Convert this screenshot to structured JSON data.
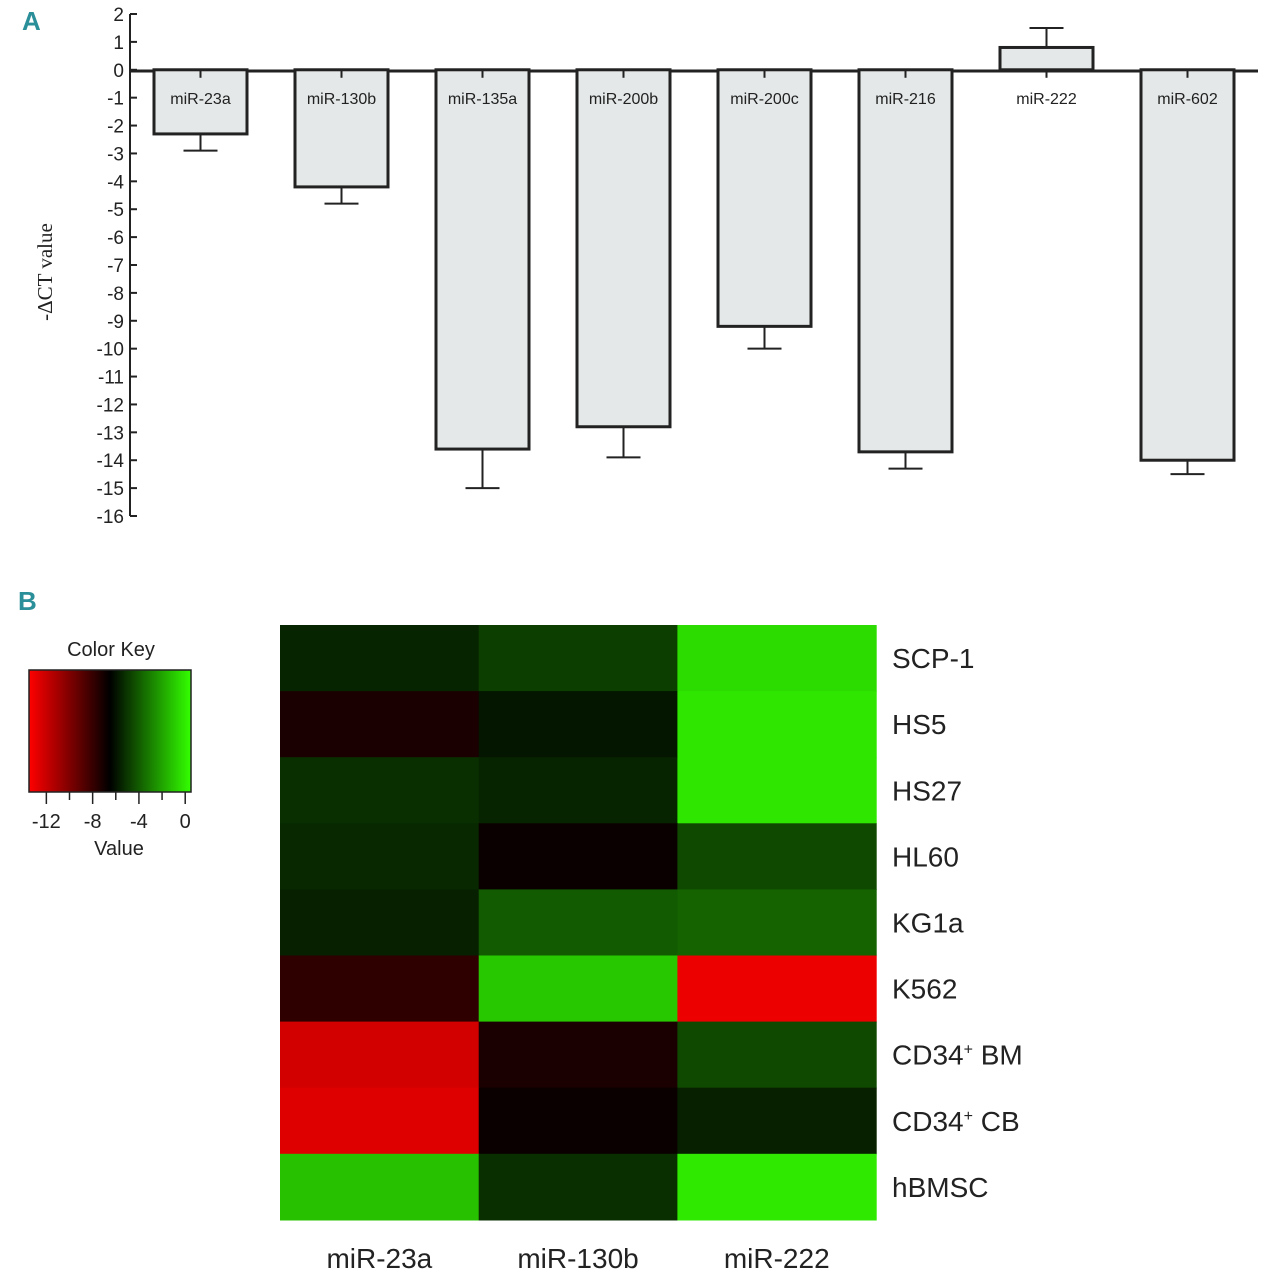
{
  "panel_a_letter": "A",
  "panel_b_letter": "B",
  "chart_data": [
    {
      "type": "bar",
      "ylabel": "-ΔCT value",
      "ylim": [
        -16,
        2
      ],
      "yticks": [
        "2",
        "1",
        "0",
        "-1",
        "-2",
        "-3",
        "-4",
        "-5",
        "-6",
        "-7",
        "-8",
        "-9",
        "-10",
        "-11",
        "-12",
        "-13",
        "-14",
        "-15",
        "-16"
      ],
      "categories": [
        "miR-23a",
        "miR-130b",
        "miR-135a",
        "miR-200b",
        "miR-200c",
        "miR-216",
        "miR-222",
        "miR-602"
      ],
      "values": [
        -2.3,
        -4.2,
        -13.6,
        -12.8,
        -9.2,
        -13.7,
        0.8,
        -14.0
      ],
      "error": [
        0.6,
        0.6,
        1.4,
        1.1,
        0.8,
        0.6,
        0.7,
        0.5
      ],
      "bar_color": "#e4e8e8",
      "grid": false
    },
    {
      "type": "heatmap",
      "columns": [
        "miR-23a",
        "miR-130b",
        "miR-222"
      ],
      "rows": [
        "SCP-1",
        "HS5",
        "HS27",
        "HL60",
        "KG1a",
        "K562",
        "CD34+ BM",
        "CD34+ CB",
        "hBMSC"
      ],
      "values": [
        [
          -5.5,
          -4.8,
          -0.5
        ],
        [
          -7.2,
          -5.9,
          -0.2
        ],
        [
          -5.2,
          -5.5,
          -0.2
        ],
        [
          -5.4,
          -6.8,
          -4.5
        ],
        [
          -5.6,
          -4.0,
          -3.8
        ],
        [
          -7.8,
          -1.0,
          -13.0
        ],
        [
          -12.3,
          -7.2,
          -4.5
        ],
        [
          -12.6,
          -6.8,
          -5.6
        ],
        [
          -1.2,
          -5.2,
          -0.1
        ]
      ],
      "color_key": {
        "title": "Color Key",
        "xlabel": "Value",
        "ticks": [
          "-12",
          "-8",
          "-4",
          "0"
        ],
        "range": [
          -13.5,
          0.5
        ],
        "colors": [
          "#ff0000",
          "#000000",
          "#33ff00"
        ]
      }
    }
  ]
}
